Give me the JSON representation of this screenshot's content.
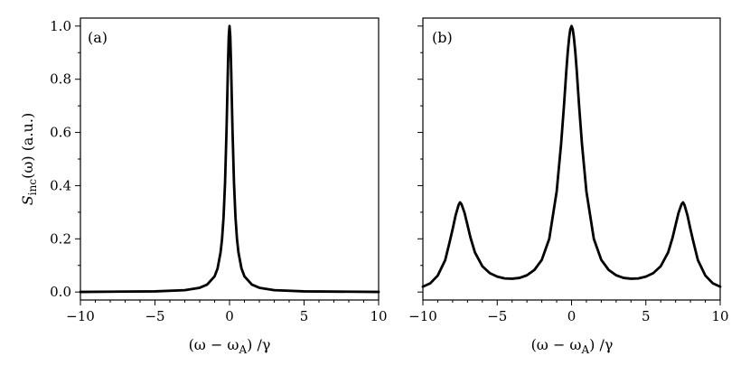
{
  "chart_data": [
    {
      "type": "line",
      "panel_label": "(a)",
      "xlabel": "(ω − ω",
      "xlabel_sub": "A",
      "xlabel_tail": ") /γ",
      "ylabel": "S",
      "ylabel_sub": "inc",
      "ylabel_tail": "(ω) (a.u.)",
      "xlim": [
        -10,
        10
      ],
      "ylim": [
        -0.03,
        1.03
      ],
      "xticks": [
        -10,
        -5,
        0,
        5,
        10
      ],
      "xtick_labels": [
        "−10",
        "−5",
        "0",
        "5",
        "10"
      ],
      "yticks": [
        0.0,
        0.2,
        0.4,
        0.6,
        0.8,
        1.0
      ],
      "ytick_labels": [
        "0.0",
        "0.2",
        "0.4",
        "0.6",
        "0.8",
        "1.0"
      ],
      "series": [
        {
          "x": [
            -10,
            -5,
            -3,
            -2,
            -1.5,
            -1,
            -0.8,
            -0.6,
            -0.5,
            -0.4,
            -0.3,
            -0.2,
            -0.15,
            -0.1,
            -0.05,
            0,
            0.05,
            0.1,
            0.15,
            0.2,
            0.3,
            0.4,
            0.5,
            0.6,
            0.8,
            1,
            1.5,
            2,
            3,
            5,
            10
          ],
          "y": [
            0.0003,
            0.0025,
            0.007,
            0.016,
            0.028,
            0.059,
            0.089,
            0.149,
            0.2,
            0.281,
            0.41,
            0.61,
            0.735,
            0.862,
            0.962,
            1.0,
            0.962,
            0.862,
            0.735,
            0.61,
            0.41,
            0.281,
            0.2,
            0.149,
            0.089,
            0.059,
            0.028,
            0.016,
            0.007,
            0.0025,
            0.0003
          ]
        }
      ]
    },
    {
      "type": "line",
      "panel_label": "(b)",
      "xlabel": "(ω − ω",
      "xlabel_sub": "A",
      "xlabel_tail": ") /γ",
      "xlim": [
        -10,
        10
      ],
      "ylim": [
        -0.03,
        1.03
      ],
      "xticks": [
        -10,
        -5,
        0,
        5,
        10
      ],
      "xtick_labels": [
        "−10",
        "−5",
        "0",
        "5",
        "10"
      ],
      "yticks": [
        0.0,
        0.2,
        0.4,
        0.6,
        0.8,
        1.0
      ],
      "series": [
        {
          "x": [
            -10,
            -9.5,
            -9,
            -8.5,
            -8.2,
            -8,
            -7.8,
            -7.6,
            -7.5,
            -7.4,
            -7.2,
            -7,
            -6.8,
            -6.5,
            -6,
            -5.5,
            -5,
            -4.5,
            -4,
            -3.5,
            -3,
            -2.5,
            -2,
            -1.5,
            -1,
            -0.7,
            -0.5,
            -0.35,
            -0.25,
            -0.15,
            -0.08,
            0,
            0.08,
            0.15,
            0.25,
            0.35,
            0.5,
            0.7,
            1,
            1.5,
            2,
            2.5,
            3,
            3.5,
            4,
            4.5,
            5,
            5.5,
            6,
            6.5,
            6.8,
            7,
            7.2,
            7.4,
            7.5,
            7.6,
            7.8,
            8,
            8.2,
            8.5,
            9,
            9.5,
            10
          ],
          "y": [
            0.02,
            0.033,
            0.062,
            0.12,
            0.188,
            0.236,
            0.288,
            0.327,
            0.337,
            0.33,
            0.298,
            0.252,
            0.205,
            0.149,
            0.097,
            0.071,
            0.058,
            0.051,
            0.05,
            0.053,
            0.063,
            0.083,
            0.121,
            0.2,
            0.378,
            0.558,
            0.707,
            0.832,
            0.905,
            0.961,
            0.988,
            1.0,
            0.988,
            0.961,
            0.905,
            0.832,
            0.707,
            0.558,
            0.378,
            0.2,
            0.121,
            0.083,
            0.063,
            0.053,
            0.05,
            0.051,
            0.058,
            0.071,
            0.097,
            0.149,
            0.205,
            0.252,
            0.298,
            0.33,
            0.337,
            0.327,
            0.288,
            0.236,
            0.188,
            0.12,
            0.062,
            0.033,
            0.02
          ]
        }
      ]
    }
  ]
}
